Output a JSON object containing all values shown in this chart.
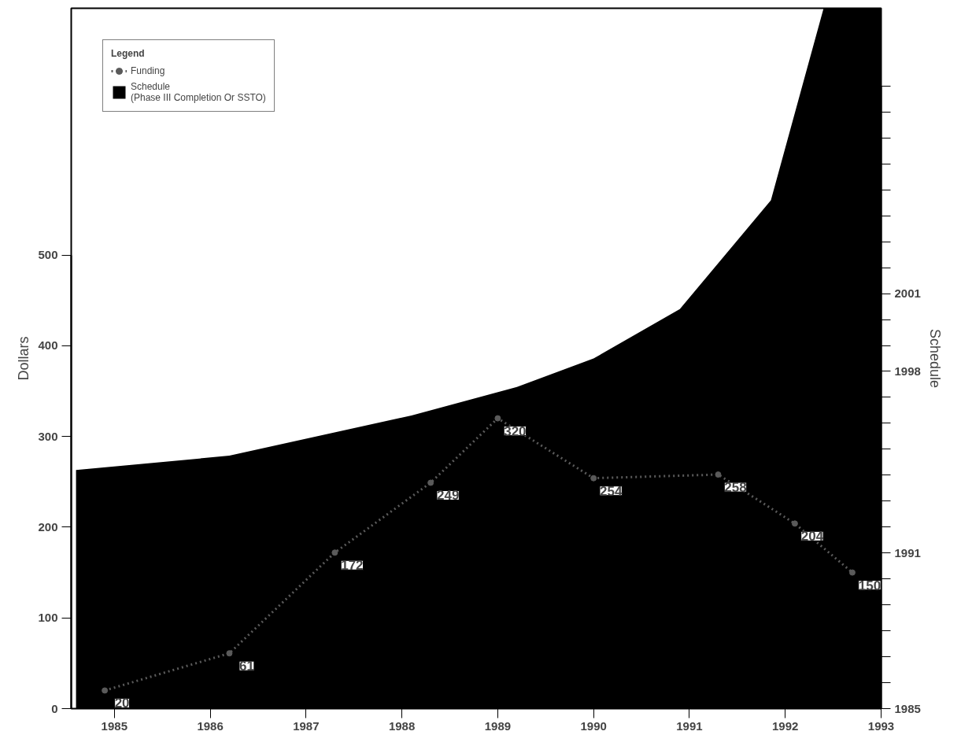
{
  "chart_data": {
    "type": "area",
    "xlabel": null,
    "ylabel": "Dollars",
    "y2label": "Schedule",
    "legend_title": "Legend",
    "xlim": [
      1984.55,
      1993
    ],
    "xticks": [
      1985,
      1986,
      1987,
      1988,
      1989,
      1990,
      1991,
      1992,
      1993
    ],
    "ylim": [
      0,
      772
    ],
    "yticks": [
      0,
      100,
      200,
      300,
      400,
      500
    ],
    "y2lim": [
      1985,
      2012
    ],
    "y2ticks": [
      1985,
      {
        "value": 1986,
        "label": null
      },
      {
        "value": 1987,
        "label": null
      },
      {
        "value": 1988,
        "label": null
      },
      {
        "value": 1989,
        "label": null
      },
      {
        "value": 1990,
        "label": null
      },
      1991,
      {
        "value": 1992,
        "label": null
      },
      {
        "value": 1993,
        "label": null
      },
      {
        "value": 1994,
        "label": null
      },
      {
        "value": 1995,
        "label": null
      },
      {
        "value": 1996,
        "label": null
      },
      {
        "value": 1997,
        "label": null
      },
      1998,
      {
        "value": 1999,
        "label": null
      },
      {
        "value": 2000,
        "label": null
      },
      2001,
      {
        "value": 2002,
        "label": null
      },
      {
        "value": 2003,
        "label": null
      },
      {
        "value": 2004,
        "label": null
      },
      {
        "value": 2005,
        "label": null
      },
      {
        "value": 2006,
        "label": null
      },
      {
        "value": 2007,
        "label": null
      },
      {
        "value": 2008,
        "label": null
      },
      {
        "value": 2009,
        "label": null
      }
    ],
    "series": [
      {
        "name": "Funding",
        "type": "line",
        "marker": "circle",
        "color": "#5a5a5a",
        "line_style": "dotted",
        "x": [
          1984.9,
          1986.2,
          1987.3,
          1988.3,
          1989.0,
          1990.0,
          1991.3,
          1992.1,
          1992.7
        ],
        "values": [
          20,
          61,
          172,
          249,
          320,
          254,
          258,
          204,
          150
        ],
        "data_labels": true
      },
      {
        "name": "Schedule\n(Phase III Completion Or SSTO)",
        "axis": "y2",
        "color": "#000000",
        "x": [
          1984.6,
          1986.2,
          1988.1,
          1989.2,
          1990.0,
          1990.9,
          1991.85,
          1992.4,
          1993.0
        ],
        "values": [
          1994.2,
          1994.75,
          1996.3,
          1997.4,
          1998.5,
          2000.4,
          2004.6,
          2012,
          2012
        ]
      }
    ],
    "grid": false,
    "legend": "top left"
  }
}
